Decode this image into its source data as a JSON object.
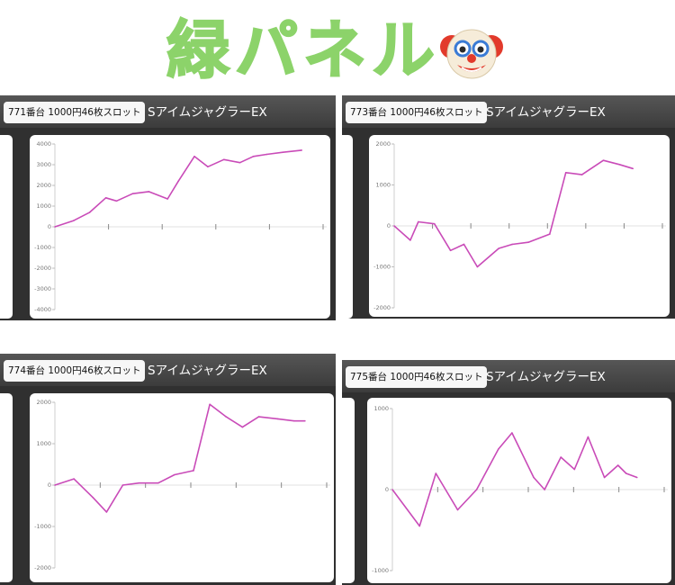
{
  "header": {
    "title": "緑パネル",
    "emoji_icon": "clown-face-icon",
    "title_color": "#8cd36a"
  },
  "panels": [
    {
      "tag": "771番台 1000円46枚スロット",
      "machine": "SアイムジャグラーEX"
    },
    {
      "tag": "773番台 1000円46枚スロット",
      "machine": "SアイムジャグラーEX"
    },
    {
      "tag": "774番台 1000円46枚スロット",
      "machine": "SアイムジャグラーEX"
    },
    {
      "tag": "775番台 1000円46枚スロット",
      "machine": "SアイムジャグラーEX"
    }
  ],
  "chart_data": [
    {
      "type": "line",
      "ylim": [
        -4000,
        4000
      ],
      "yticks": [
        "4000",
        "3000",
        "2000",
        "1000",
        "0",
        "-1000",
        "-2000",
        "-3000",
        "-4000"
      ],
      "tick_values": [
        4000,
        3000,
        2000,
        1000,
        0,
        -1000,
        -2000,
        -3000,
        -4000
      ],
      "x_ticks": 5,
      "x_max": 10,
      "x": [
        0,
        0.7,
        1.3,
        1.9,
        2.3,
        2.9,
        3.5,
        4.2,
        4.6,
        5.2,
        5.7,
        6.3,
        6.9,
        7.4,
        7.9,
        8.5,
        9.2
      ],
      "values": [
        0,
        300,
        700,
        1400,
        1250,
        1600,
        1700,
        1350,
        2200,
        3400,
        2900,
        3250,
        3100,
        3400,
        3500,
        3600,
        3700
      ],
      "line_color": "#c94bb8"
    },
    {
      "type": "line",
      "ylim": [
        -2000,
        2000
      ],
      "yticks": [
        "2000",
        "1000",
        "0",
        "-1000",
        "-2000"
      ],
      "tick_values": [
        2000,
        1000,
        0,
        -1000,
        -2000
      ],
      "x_ticks": 7,
      "x_max": 10,
      "x": [
        0,
        0.6,
        0.9,
        1.5,
        2.1,
        2.6,
        3.1,
        3.9,
        4.4,
        5.0,
        5.8,
        6.4,
        7.0,
        7.8,
        8.4,
        8.9
      ],
      "values": [
        0,
        -350,
        100,
        50,
        -600,
        -450,
        -1000,
        -550,
        -450,
        -400,
        -200,
        1300,
        1250,
        1600,
        1500,
        1400
      ],
      "line_color": "#c94bb8"
    },
    {
      "type": "line",
      "ylim": [
        -2000,
        2000
      ],
      "yticks": [
        "2000",
        "1000",
        "0",
        "-1000",
        "-2000"
      ],
      "tick_values": [
        2000,
        1000,
        0,
        -1000,
        -2000
      ],
      "x_ticks": 6,
      "x_max": 10,
      "x": [
        0,
        0.7,
        1.4,
        1.9,
        2.5,
        3.1,
        3.8,
        4.4,
        5.1,
        5.7,
        6.3,
        6.9,
        7.5,
        8.2,
        8.8,
        9.2
      ],
      "values": [
        0,
        150,
        -300,
        -650,
        0,
        50,
        50,
        250,
        350,
        1950,
        1650,
        1400,
        1650,
        1600,
        1550,
        1550
      ],
      "line_color": "#c94bb8"
    },
    {
      "type": "line",
      "ylim": [
        -1000,
        1000
      ],
      "yticks": [
        "1000",
        "0",
        "-1000"
      ],
      "tick_values": [
        1000,
        0,
        -1000
      ],
      "x_ticks": 6,
      "x_max": 10,
      "x": [
        0,
        1.0,
        1.6,
        2.4,
        3.1,
        3.9,
        4.4,
        5.2,
        5.6,
        6.2,
        6.7,
        7.2,
        7.8,
        8.3,
        8.6,
        9.0
      ],
      "values": [
        0,
        -450,
        200,
        -250,
        0,
        500,
        700,
        150,
        0,
        400,
        250,
        650,
        150,
        300,
        200,
        150
      ],
      "line_color": "#c94bb8"
    }
  ]
}
